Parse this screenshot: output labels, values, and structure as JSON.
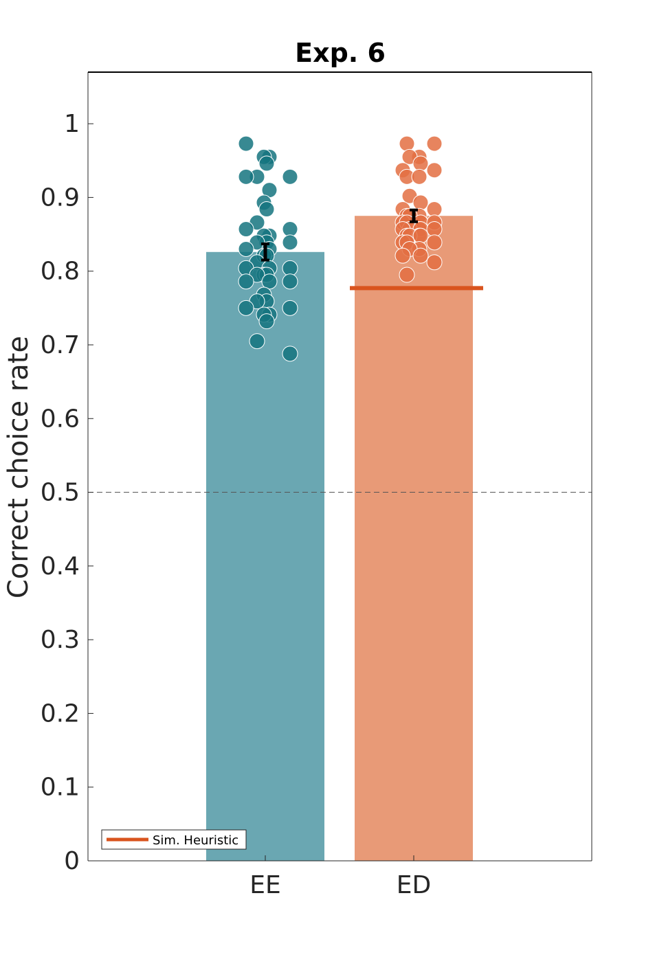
{
  "chart_data": {
    "type": "bar",
    "title": "Exp. 6",
    "ylabel": "Correct choice rate",
    "xlabel": "",
    "categories": [
      "EE",
      "ED"
    ],
    "ylim": [
      0,
      1.07
    ],
    "yticks": [
      0,
      0.1,
      0.2,
      0.3,
      0.4,
      0.5,
      0.6,
      0.7,
      0.8,
      0.9,
      1
    ],
    "ytick_labels": [
      "0",
      "0.1",
      "0.2",
      "0.3",
      "0.4",
      "0.5",
      "0.6",
      "0.7",
      "0.8",
      "0.9",
      "1"
    ],
    "grid": false,
    "reference_line": 0.5,
    "series": [
      {
        "category": "EE",
        "mean": 0.826,
        "sem": 0.011,
        "bar_color": "#6aa7b2",
        "point_color": "#15747f",
        "points": [
          0.973,
          0.955,
          0.955,
          0.946,
          0.928,
          0.928,
          0.928,
          0.91,
          0.893,
          0.884,
          0.866,
          0.857,
          0.857,
          0.848,
          0.848,
          0.839,
          0.839,
          0.839,
          0.83,
          0.83,
          0.821,
          0.821,
          0.812,
          0.804,
          0.804,
          0.804,
          0.795,
          0.795,
          0.795,
          0.786,
          0.786,
          0.786,
          0.768,
          0.759,
          0.759,
          0.75,
          0.75,
          0.741,
          0.741,
          0.732,
          0.705,
          0.688
        ]
      },
      {
        "category": "ED",
        "mean": 0.875,
        "sem": 0.008,
        "bar_color": "#e89a77",
        "point_color": "#e36f42",
        "points": [
          0.973,
          0.973,
          0.955,
          0.955,
          0.946,
          0.937,
          0.937,
          0.928,
          0.928,
          0.902,
          0.893,
          0.884,
          0.884,
          0.875,
          0.875,
          0.875,
          0.866,
          0.866,
          0.866,
          0.866,
          0.857,
          0.857,
          0.857,
          0.857,
          0.857,
          0.848,
          0.848,
          0.848,
          0.848,
          0.839,
          0.839,
          0.839,
          0.83,
          0.83,
          0.821,
          0.821,
          0.812,
          0.795
        ]
      }
    ],
    "heuristic": {
      "category": "ED",
      "value": 0.777,
      "color": "#d9541e"
    },
    "legend": {
      "position": "bottom-left",
      "entries": [
        {
          "label": "Sim. Heuristic",
          "color": "#d9541e"
        }
      ]
    }
  }
}
